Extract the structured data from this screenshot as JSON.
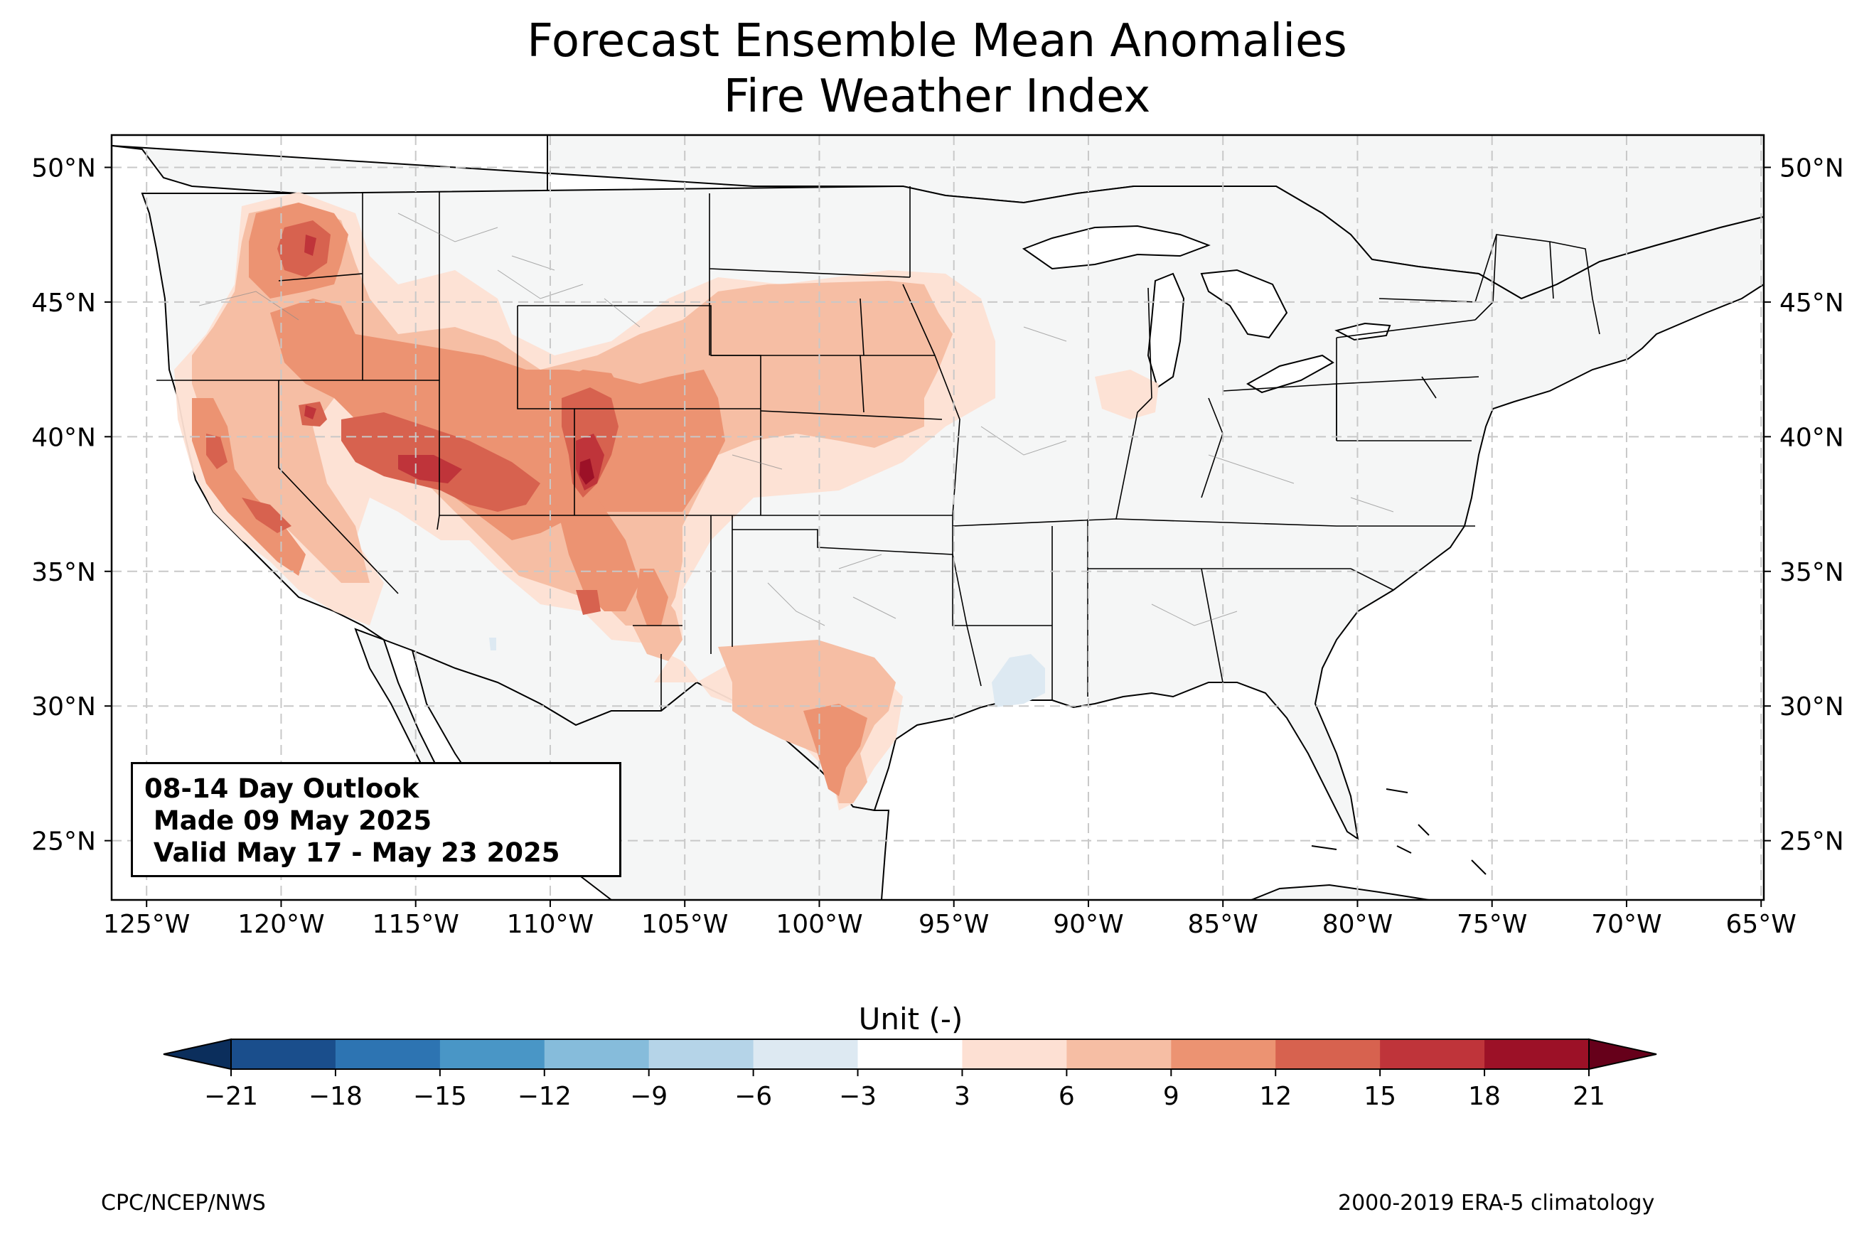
{
  "title": {
    "line1": "Forecast Ensemble Mean Anomalies",
    "line2": "Fire Weather Index"
  },
  "info_box": {
    "line1": "08-14 Day Outlook",
    "line2": " Made 09 May 2025",
    "line3": " Valid May 17 - May 23 2025"
  },
  "map": {
    "longitude_ticks": [
      "125°W",
      "120°W",
      "115°W",
      "110°W",
      "105°W",
      "100°W",
      "95°W",
      "90°W",
      "85°W",
      "80°W",
      "75°W",
      "70°W",
      "65°W"
    ],
    "latitude_ticks": [
      "50°N",
      "45°N",
      "40°N",
      "35°N",
      "30°N",
      "25°N"
    ],
    "lon_range": [
      -126.3,
      -64.9
    ],
    "lat_range": [
      22.8,
      51.2
    ],
    "land_color": "#f5f6f6",
    "anomaly_regions": [
      {
        "name": "pacific-northwest-high",
        "level": 12
      },
      {
        "name": "great-basin-high",
        "level": 12
      },
      {
        "name": "colorado-peak",
        "level": 18
      },
      {
        "name": "central-plains",
        "level": 6
      },
      {
        "name": "texas",
        "level": 9
      },
      {
        "name": "lower-mississippi-negative",
        "level": -3
      }
    ]
  },
  "colorbar": {
    "label": "Unit (-)",
    "ticks": [
      "−21",
      "−18",
      "−15",
      "−12",
      "−9",
      "−6",
      "−3",
      "3",
      "6",
      "9",
      "12",
      "15",
      "18",
      "21"
    ],
    "colors": [
      "#1a4e8c",
      "#2d74b2",
      "#4996c6",
      "#86bcdb",
      "#b5d4e8",
      "#dde9f2",
      "#ffffff",
      "#fde0d3",
      "#f6bea4",
      "#ec9372",
      "#d7624f",
      "#bf343a",
      "#9c1127"
    ],
    "extend_low_color": "#0b2e5c",
    "extend_high_color": "#66001a"
  },
  "footer": {
    "left": "CPC/NCEP/NWS",
    "right": "2000-2019 ERA-5 climatology"
  }
}
